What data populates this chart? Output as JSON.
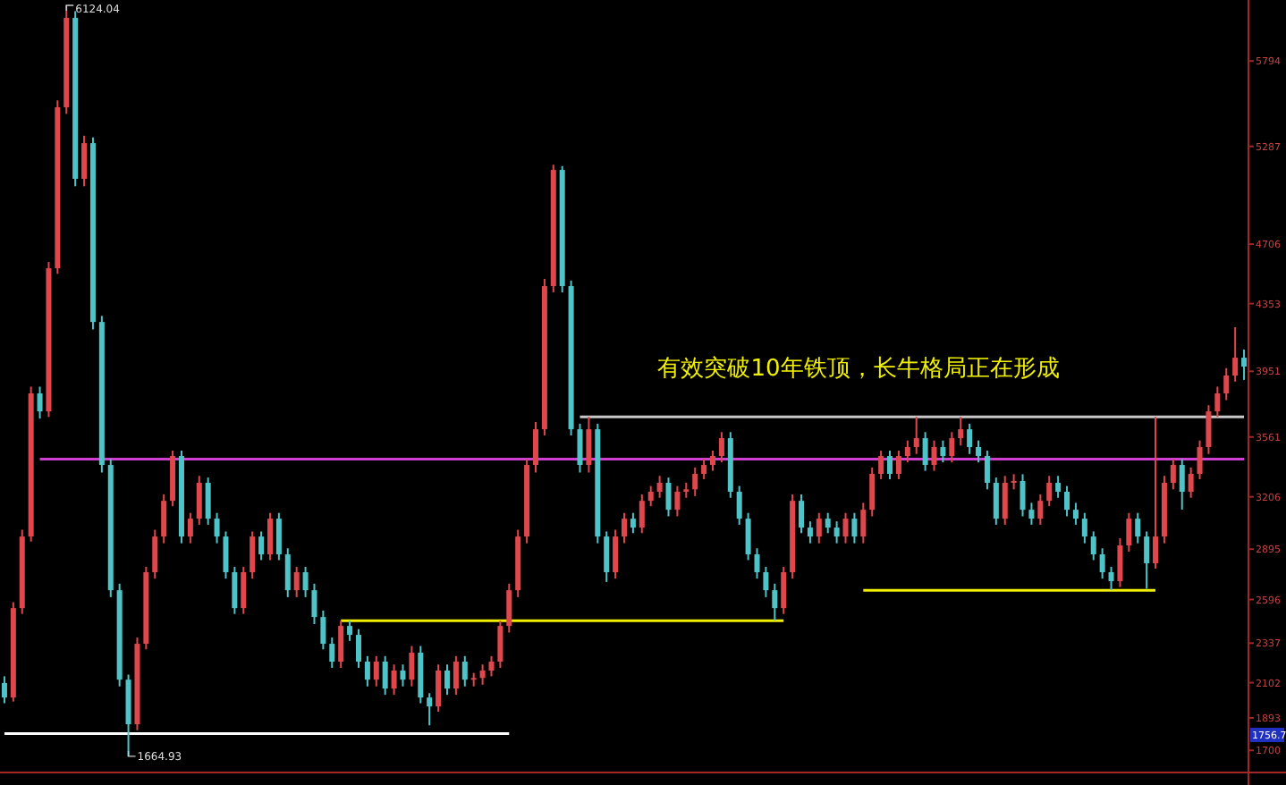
{
  "chart_data": {
    "type": "candlestick",
    "categories": [
      null,
      null,
      null,
      null,
      null,
      null,
      null,
      null,
      null,
      null,
      null,
      null,
      null,
      null,
      null,
      null,
      null,
      null,
      null,
      null,
      null,
      null,
      null,
      null,
      null,
      null,
      null,
      null,
      null,
      null,
      null,
      null,
      null,
      null,
      null,
      null,
      null,
      null,
      null,
      null,
      null,
      null,
      null,
      null,
      null,
      null,
      null,
      null,
      null,
      null,
      null,
      null,
      null,
      null,
      null,
      null,
      null,
      null,
      null,
      null,
      null,
      null,
      null,
      null,
      null,
      null,
      null,
      null,
      null,
      null,
      null,
      null,
      null,
      null,
      null,
      null,
      null,
      null,
      null,
      null,
      null,
      null,
      null,
      null,
      null,
      null,
      null,
      null,
      null,
      null,
      null,
      null,
      null,
      null,
      null,
      null,
      null,
      null,
      null,
      null,
      null,
      null,
      null,
      null,
      null,
      null,
      null,
      null,
      null,
      null,
      null,
      null,
      null,
      null,
      null,
      null,
      null,
      null,
      null,
      null,
      null,
      null,
      null,
      null,
      null,
      null,
      null,
      null,
      null,
      null,
      null,
      null,
      null,
      null,
      null,
      null,
      null,
      null,
      null,
      null,
      null
    ],
    "ohlc": [
      [
        2100,
        2140,
        1980,
        2014
      ],
      [
        2014,
        2580,
        1990,
        2545
      ],
      [
        2545,
        3010,
        2510,
        2970
      ],
      [
        2970,
        3860,
        2940,
        3820
      ],
      [
        3820,
        3860,
        3670,
        3713
      ],
      [
        3713,
        4600,
        3680,
        4563
      ],
      [
        4563,
        5560,
        4530,
        5519
      ],
      [
        5519,
        6124.04,
        5480,
        6050
      ],
      [
        6050,
        6090,
        5050,
        5094
      ],
      [
        5094,
        5350,
        5050,
        5306
      ],
      [
        5306,
        5340,
        4200,
        4244
      ],
      [
        4244,
        4280,
        3350,
        3395
      ],
      [
        3395,
        3430,
        2610,
        2651
      ],
      [
        2651,
        2690,
        2080,
        2120
      ],
      [
        2120,
        2150,
        1664.93,
        1855
      ],
      [
        1855,
        2370,
        1820,
        2333
      ],
      [
        2333,
        2790,
        2300,
        2758
      ],
      [
        2758,
        3010,
        2720,
        2970
      ],
      [
        2970,
        3220,
        2930,
        3182
      ],
      [
        3182,
        3480,
        3150,
        3448
      ],
      [
        3448,
        3480,
        2930,
        2970
      ],
      [
        2970,
        3110,
        2930,
        3076
      ],
      [
        3076,
        3330,
        3040,
        3289
      ],
      [
        3289,
        3320,
        3040,
        3076
      ],
      [
        3076,
        3110,
        2930,
        2970
      ],
      [
        2970,
        3000,
        2720,
        2758
      ],
      [
        2758,
        2790,
        2510,
        2545
      ],
      [
        2545,
        2790,
        2510,
        2758
      ],
      [
        2758,
        3000,
        2720,
        2970
      ],
      [
        2970,
        3000,
        2830,
        2864
      ],
      [
        2864,
        3110,
        2830,
        3076
      ],
      [
        3076,
        3110,
        2830,
        2864
      ],
      [
        2864,
        2900,
        2610,
        2651
      ],
      [
        2651,
        2790,
        2610,
        2758
      ],
      [
        2758,
        2790,
        2610,
        2651
      ],
      [
        2651,
        2690,
        2450,
        2492
      ],
      [
        2492,
        2530,
        2300,
        2333
      ],
      [
        2333,
        2370,
        2190,
        2227
      ],
      [
        2227,
        2470,
        2190,
        2439
      ],
      [
        2439,
        2470,
        2350,
        2386
      ],
      [
        2386,
        2420,
        2190,
        2227
      ],
      [
        2227,
        2260,
        2080,
        2120
      ],
      [
        2120,
        2260,
        2080,
        2227
      ],
      [
        2227,
        2260,
        2030,
        2067
      ],
      [
        2067,
        2210,
        2030,
        2174
      ],
      [
        2174,
        2210,
        2080,
        2120
      ],
      [
        2120,
        2320,
        2080,
        2280
      ],
      [
        2280,
        2320,
        1980,
        2014
      ],
      [
        2014,
        2040,
        1849,
        1961
      ],
      [
        1961,
        2210,
        1930,
        2174
      ],
      [
        2174,
        2210,
        2030,
        2067
      ],
      [
        2067,
        2260,
        2030,
        2227
      ],
      [
        2227,
        2260,
        2080,
        2120
      ],
      [
        2120,
        2160,
        2080,
        2130
      ],
      [
        2130,
        2210,
        2090,
        2174
      ],
      [
        2174,
        2260,
        2140,
        2227
      ],
      [
        2227,
        2470,
        2190,
        2439
      ],
      [
        2439,
        2690,
        2400,
        2651
      ],
      [
        2651,
        3010,
        2610,
        2970
      ],
      [
        2970,
        3430,
        2930,
        3395
      ],
      [
        3395,
        3650,
        3350,
        3607
      ],
      [
        3607,
        4500,
        3570,
        4457
      ],
      [
        4457,
        5178,
        4420,
        5147
      ],
      [
        5147,
        5170,
        4420,
        4457
      ],
      [
        4457,
        4490,
        3570,
        3607
      ],
      [
        3607,
        3640,
        3350,
        3395
      ],
      [
        3395,
        3681,
        3350,
        3607
      ],
      [
        3607,
        3640,
        2930,
        2970
      ],
      [
        2970,
        3000,
        2700,
        2758
      ],
      [
        2758,
        3010,
        2720,
        2970
      ],
      [
        2970,
        3110,
        2930,
        3076
      ],
      [
        3076,
        3110,
        2990,
        3023
      ],
      [
        3023,
        3220,
        2990,
        3182
      ],
      [
        3182,
        3270,
        3150,
        3236
      ],
      [
        3236,
        3330,
        3200,
        3289
      ],
      [
        3289,
        3320,
        3090,
        3129
      ],
      [
        3129,
        3270,
        3090,
        3236
      ],
      [
        3236,
        3290,
        3200,
        3250
      ],
      [
        3250,
        3380,
        3210,
        3342
      ],
      [
        3342,
        3430,
        3310,
        3395
      ],
      [
        3395,
        3480,
        3360,
        3448
      ],
      [
        3448,
        3590,
        3410,
        3554
      ],
      [
        3554,
        3590,
        3200,
        3236
      ],
      [
        3236,
        3270,
        3040,
        3076
      ],
      [
        3076,
        3110,
        2830,
        2864
      ],
      [
        2864,
        2900,
        2720,
        2758
      ],
      [
        2758,
        2790,
        2610,
        2651
      ],
      [
        2651,
        2690,
        2471,
        2545
      ],
      [
        2545,
        2790,
        2510,
        2758
      ],
      [
        2758,
        3220,
        2720,
        3182
      ],
      [
        3182,
        3220,
        2990,
        3023
      ],
      [
        3023,
        3060,
        2930,
        2970
      ],
      [
        2970,
        3110,
        2930,
        3076
      ],
      [
        3076,
        3110,
        2990,
        3023
      ],
      [
        3023,
        3060,
        2930,
        2970
      ],
      [
        2970,
        3110,
        2930,
        3076
      ],
      [
        3076,
        3110,
        2930,
        2970
      ],
      [
        2970,
        3170,
        2930,
        3129
      ],
      [
        3129,
        3380,
        3090,
        3342
      ],
      [
        3342,
        3480,
        3310,
        3448
      ],
      [
        3448,
        3480,
        3310,
        3342
      ],
      [
        3342,
        3480,
        3310,
        3448
      ],
      [
        3448,
        3540,
        3410,
        3501
      ],
      [
        3501,
        3681,
        3460,
        3554
      ],
      [
        3554,
        3590,
        3360,
        3395
      ],
      [
        3395,
        3540,
        3360,
        3501
      ],
      [
        3501,
        3540,
        3410,
        3448
      ],
      [
        3448,
        3590,
        3410,
        3554
      ],
      [
        3554,
        3681,
        3510,
        3607
      ],
      [
        3607,
        3640,
        3460,
        3501
      ],
      [
        3501,
        3540,
        3410,
        3448
      ],
      [
        3448,
        3480,
        3250,
        3289
      ],
      [
        3289,
        3320,
        3040,
        3076
      ],
      [
        3076,
        3330,
        3040,
        3289
      ],
      [
        3289,
        3340,
        3250,
        3300
      ],
      [
        3300,
        3340,
        3090,
        3129
      ],
      [
        3129,
        3170,
        3040,
        3076
      ],
      [
        3076,
        3220,
        3040,
        3182
      ],
      [
        3182,
        3330,
        3150,
        3289
      ],
      [
        3289,
        3330,
        3200,
        3236
      ],
      [
        3236,
        3270,
        3090,
        3129
      ],
      [
        3129,
        3170,
        3040,
        3076
      ],
      [
        3076,
        3110,
        2930,
        2970
      ],
      [
        2970,
        3000,
        2830,
        2864
      ],
      [
        2864,
        2900,
        2720,
        2758
      ],
      [
        2758,
        2790,
        2651,
        2705
      ],
      [
        2705,
        2960,
        2670,
        2917
      ],
      [
        2917,
        3110,
        2880,
        3076
      ],
      [
        3076,
        3110,
        2930,
        2970
      ],
      [
        2970,
        3000,
        2660,
        2811
      ],
      [
        2811,
        3681,
        2780,
        2970
      ],
      [
        2970,
        3330,
        2930,
        3289
      ],
      [
        3289,
        3430,
        3250,
        3395
      ],
      [
        3395,
        3430,
        3130,
        3236
      ],
      [
        3236,
        3380,
        3200,
        3342
      ],
      [
        3342,
        3540,
        3310,
        3501
      ],
      [
        3501,
        3750,
        3460,
        3713
      ],
      [
        3713,
        3860,
        3680,
        3820
      ],
      [
        3820,
        3970,
        3780,
        3926
      ],
      [
        3926,
        4213,
        3890,
        4032
      ],
      [
        4032,
        4080,
        3900,
        3979
      ]
    ],
    "colors": [
      "#4fc4c8",
      "#e0474c",
      "#e0474c",
      "#e0474c",
      "#4fc4c8",
      "#e0474c",
      "#e0474c",
      "#e0474c",
      "#4fc4c8",
      "#e0474c",
      "#4fc4c8",
      "#4fc4c8",
      "#4fc4c8",
      "#4fc4c8",
      "#4fc4c8",
      "#e0474c",
      "#e0474c",
      "#e0474c",
      "#e0474c",
      "#e0474c",
      "#4fc4c8",
      "#e0474c",
      "#e0474c",
      "#4fc4c8",
      "#4fc4c8",
      "#4fc4c8",
      "#4fc4c8",
      "#e0474c",
      "#e0474c",
      "#4fc4c8",
      "#e0474c",
      "#4fc4c8",
      "#4fc4c8",
      "#e0474c",
      "#4fc4c8",
      "#4fc4c8",
      "#4fc4c8",
      "#4fc4c8",
      "#e0474c",
      "#4fc4c8",
      "#4fc4c8",
      "#4fc4c8",
      "#e0474c",
      "#4fc4c8",
      "#e0474c",
      "#4fc4c8",
      "#e0474c",
      "#4fc4c8",
      "#4fc4c8",
      "#e0474c",
      "#4fc4c8",
      "#e0474c",
      "#4fc4c8",
      "#e0474c",
      "#e0474c",
      "#e0474c",
      "#e0474c",
      "#e0474c",
      "#e0474c",
      "#e0474c",
      "#e0474c",
      "#e0474c",
      "#e0474c",
      "#4fc4c8",
      "#4fc4c8",
      "#4fc4c8",
      "#e0474c",
      "#4fc4c8",
      "#4fc4c8",
      "#e0474c",
      "#e0474c",
      "#4fc4c8",
      "#e0474c",
      "#e0474c",
      "#e0474c",
      "#4fc4c8",
      "#e0474c",
      "#e0474c",
      "#e0474c",
      "#e0474c",
      "#e0474c",
      "#e0474c",
      "#4fc4c8",
      "#4fc4c8",
      "#4fc4c8",
      "#4fc4c8",
      "#4fc4c8",
      "#4fc4c8",
      "#e0474c",
      "#e0474c",
      "#4fc4c8",
      "#4fc4c8",
      "#e0474c",
      "#4fc4c8",
      "#4fc4c8",
      "#e0474c",
      "#4fc4c8",
      "#e0474c",
      "#e0474c",
      "#e0474c",
      "#4fc4c8",
      "#e0474c",
      "#e0474c",
      "#e0474c",
      "#4fc4c8",
      "#e0474c",
      "#4fc4c8",
      "#e0474c",
      "#e0474c",
      "#4fc4c8",
      "#4fc4c8",
      "#4fc4c8",
      "#4fc4c8",
      "#e0474c",
      "#e0474c",
      "#4fc4c8",
      "#4fc4c8",
      "#e0474c",
      "#e0474c",
      "#4fc4c8",
      "#4fc4c8",
      "#4fc4c8",
      "#4fc4c8",
      "#4fc4c8",
      "#4fc4c8",
      "#4fc4c8",
      "#e0474c",
      "#e0474c",
      "#4fc4c8",
      "#4fc4c8",
      "#e0474c",
      "#e0474c",
      "#e0474c",
      "#4fc4c8",
      "#e0474c",
      "#e0474c",
      "#e0474c",
      "#e0474c",
      "#e0474c",
      "#e0474c",
      "#4fc4c8"
    ],
    "series": [
      {
        "type": "line",
        "color": "#ffffff",
        "values": [
          1800,
          1800,
          1800,
          1800,
          1800,
          1800,
          1800,
          1800,
          1800,
          1800,
          1800,
          1800,
          1800,
          1800,
          1800,
          1800,
          1800,
          1800,
          1800,
          1800,
          1800,
          1800,
          1800,
          1800,
          1800,
          1800,
          1800,
          1800,
          1800,
          1800,
          1800,
          1800,
          1800,
          1800,
          1800,
          1800,
          1800,
          1800,
          1800,
          1800,
          1800,
          1800,
          1800,
          1800,
          1800,
          1800,
          1800,
          1800,
          1800,
          1800,
          1800,
          1800,
          1800,
          1800,
          1800,
          1800,
          1800,
          1800,
          null,
          null,
          null,
          null,
          null,
          null,
          null,
          null,
          null,
          null,
          null,
          null,
          null,
          null,
          null,
          null,
          null,
          null,
          null,
          null,
          null,
          null,
          null,
          null,
          null,
          null,
          null,
          null,
          null,
          null,
          null,
          null,
          null,
          null,
          null,
          null,
          null,
          null,
          null,
          null,
          null,
          null,
          null,
          null,
          null,
          null,
          null,
          null,
          null,
          null,
          null,
          null,
          null,
          null,
          null,
          null,
          null,
          null,
          null,
          null,
          null,
          null,
          null,
          null,
          null,
          null,
          null,
          null,
          null,
          null,
          null,
          null,
          null,
          null,
          null,
          null,
          null,
          null,
          null,
          null,
          null,
          null,
          null
        ]
      },
      {
        "type": "line",
        "color": "#f0f000",
        "values": [
          null,
          null,
          null,
          null,
          null,
          null,
          null,
          null,
          null,
          null,
          null,
          null,
          null,
          null,
          null,
          null,
          null,
          null,
          null,
          null,
          null,
          null,
          null,
          null,
          null,
          null,
          null,
          null,
          null,
          null,
          null,
          null,
          null,
          null,
          null,
          null,
          null,
          null,
          2470,
          2470,
          2470,
          2470,
          2470,
          2470,
          2470,
          2470,
          2470,
          2470,
          2470,
          2470,
          2470,
          2470,
          2470,
          2470,
          2470,
          2470,
          2470,
          2470,
          2470,
          2470,
          2470,
          2470,
          2470,
          2470,
          2470,
          2470,
          2470,
          2470,
          2470,
          2470,
          2470,
          2470,
          2470,
          2470,
          2470,
          2470,
          2470,
          2470,
          2470,
          2470,
          2470,
          2470,
          2470,
          2470,
          2470,
          2470,
          2470,
          2470,
          2470,
          null,
          null,
          null,
          null,
          null,
          null,
          null,
          null,
          null,
          null,
          null,
          null,
          null,
          null,
          null,
          null,
          null,
          null,
          null,
          null,
          null,
          null,
          null,
          null,
          null,
          null,
          null,
          null,
          null,
          null,
          null,
          null,
          null,
          null,
          null,
          null,
          null,
          null,
          null,
          null,
          null,
          null,
          null,
          null,
          null,
          null,
          null,
          null,
          null,
          null,
          null,
          null
        ]
      },
      {
        "type": "line",
        "color": "#f0f000",
        "values": [
          null,
          null,
          null,
          null,
          null,
          null,
          null,
          null,
          null,
          null,
          null,
          null,
          null,
          null,
          null,
          null,
          null,
          null,
          null,
          null,
          null,
          null,
          null,
          null,
          null,
          null,
          null,
          null,
          null,
          null,
          null,
          null,
          null,
          null,
          null,
          null,
          null,
          null,
          null,
          null,
          null,
          null,
          null,
          null,
          null,
          null,
          null,
          null,
          null,
          null,
          null,
          null,
          null,
          null,
          null,
          null,
          null,
          null,
          null,
          null,
          null,
          null,
          null,
          null,
          null,
          null,
          null,
          null,
          null,
          null,
          null,
          null,
          null,
          null,
          null,
          null,
          null,
          null,
          null,
          null,
          null,
          null,
          null,
          null,
          null,
          null,
          null,
          null,
          null,
          null,
          null,
          null,
          null,
          null,
          null,
          null,
          null,
          2650,
          2650,
          2650,
          2650,
          2650,
          2650,
          2650,
          2650,
          2650,
          2650,
          2650,
          2650,
          2650,
          2650,
          2650,
          2650,
          2650,
          2650,
          2650,
          2650,
          2650,
          2650,
          2650,
          2650,
          2650,
          2650,
          2650,
          2650,
          2650,
          2650,
          2650,
          2650,
          2650,
          2650,
          null,
          null,
          null,
          null,
          null,
          null,
          null,
          null,
          null,
          null
        ]
      },
      {
        "type": "line",
        "color": "#c8c8c8",
        "values": [
          null,
          null,
          null,
          null,
          null,
          null,
          null,
          null,
          null,
          null,
          null,
          null,
          null,
          null,
          null,
          null,
          null,
          null,
          null,
          null,
          null,
          null,
          null,
          null,
          null,
          null,
          null,
          null,
          null,
          null,
          null,
          null,
          null,
          null,
          null,
          null,
          null,
          null,
          null,
          null,
          null,
          null,
          null,
          null,
          null,
          null,
          null,
          null,
          null,
          null,
          null,
          null,
          null,
          null,
          null,
          null,
          null,
          null,
          null,
          null,
          null,
          null,
          null,
          null,
          null,
          3680,
          3680,
          3680,
          3680,
          3680,
          3680,
          3680,
          3680,
          3680,
          3680,
          3680,
          3680,
          3680,
          3680,
          3680,
          3680,
          3680,
          3680,
          3680,
          3680,
          3680,
          3680,
          3680,
          3680,
          3680,
          3680,
          3680,
          3680,
          3680,
          3680,
          3680,
          3680,
          3680,
          3680,
          3680,
          3680,
          3680,
          3680,
          3680,
          3680,
          3680,
          3680,
          3680,
          3680,
          3680,
          3680,
          3680,
          3680,
          3680,
          3680,
          3680,
          3680,
          3680,
          3680,
          3680,
          3680,
          3680,
          3680,
          3680,
          3680,
          3680,
          3680,
          3680,
          3680,
          3680,
          3680,
          3680,
          3680,
          3680,
          3680,
          3680,
          3680,
          3680,
          3680,
          3680,
          3680
        ]
      },
      {
        "type": "line",
        "color": "#d040d0",
        "values": [
          null,
          null,
          null,
          null,
          3430,
          3430,
          3430,
          3430,
          3430,
          3430,
          3430,
          3430,
          3430,
          3430,
          3430,
          3430,
          3430,
          3430,
          3430,
          3430,
          3430,
          3430,
          3430,
          3430,
          3430,
          3430,
          3430,
          3430,
          3430,
          3430,
          3430,
          3430,
          3430,
          3430,
          3430,
          3430,
          3430,
          3430,
          3430,
          3430,
          3430,
          3430,
          3430,
          3430,
          3430,
          3430,
          3430,
          3430,
          3430,
          3430,
          3430,
          3430,
          3430,
          3430,
          3430,
          3430,
          3430,
          3430,
          3430,
          3430,
          3430,
          3430,
          3430,
          3430,
          3430,
          3430,
          3430,
          3430,
          3430,
          3430,
          3430,
          3430,
          3430,
          3430,
          3430,
          3430,
          3430,
          3430,
          3430,
          3430,
          3430,
          3430,
          3430,
          3430,
          3430,
          3430,
          3430,
          3430,
          3430,
          3430,
          3430,
          3430,
          3430,
          3430,
          3430,
          3430,
          3430,
          3430,
          3430,
          3430,
          3430,
          3430,
          3430,
          3430,
          3430,
          3430,
          3430,
          3430,
          3430,
          3430,
          3430,
          3430,
          3430,
          3430,
          3430,
          3430,
          3430,
          3430,
          3430,
          3430,
          3430,
          3430,
          3430,
          3430,
          3430,
          3430,
          3430,
          3430,
          3430,
          3430,
          3430,
          3430,
          3430,
          3430,
          3430,
          3430,
          3430,
          3430,
          3430,
          3430,
          3430
        ]
      }
    ],
    "ylim": [
      1590,
      6156
    ],
    "yticks": [
      5794,
      5287,
      4706,
      4353,
      3951,
      3561,
      3206,
      2895,
      2596,
      2337,
      2102,
      1893,
      1700
    ],
    "annotations": [
      "有效突破10年铁顶，长牛格局正在形成",
      "6124.04",
      "1664.93",
      "1756.7"
    ]
  }
}
